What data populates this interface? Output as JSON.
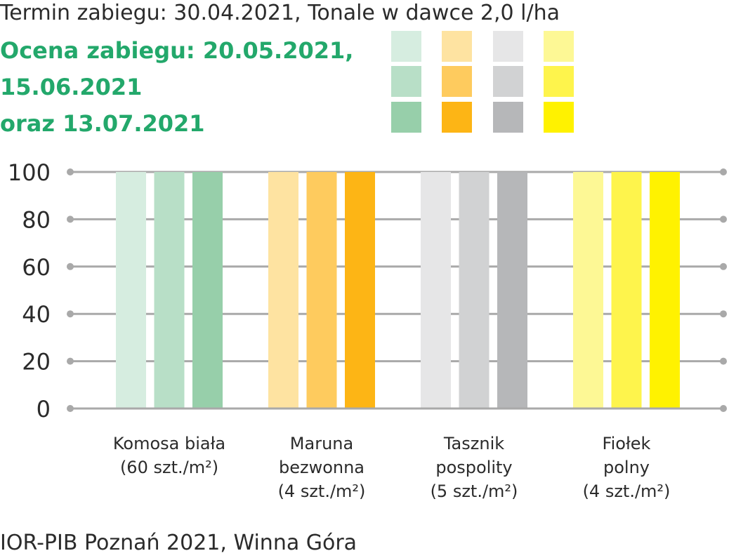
{
  "header": {
    "subtitle": "Termin zabiegu: 30.04.2021, Tonale w dawce 2,0 l/ha",
    "evaluation_lines": [
      "Ocena zabiegu: 20.05.2021,",
      "15.06.2021",
      "oraz 13.07.2021"
    ]
  },
  "footer": {
    "source": "IOR-PIB Poznań 2021, Winna Góra"
  },
  "chart_data": {
    "type": "bar",
    "title": "",
    "xlabel": "",
    "ylabel": "",
    "ylim": [
      0,
      100
    ],
    "yticks": [
      "0",
      "20",
      "40",
      "60",
      "80",
      "100"
    ],
    "grid": true,
    "legend": "top-right color swatch grid (rows = evaluation dates, columns = species)",
    "categories": [
      {
        "lines": [
          "Komosa biała",
          "(60 szt./m²)"
        ]
      },
      {
        "lines": [
          "Maruna",
          "bezwonna",
          "(4 szt./m²)"
        ]
      },
      {
        "lines": [
          "Tasznik",
          "pospolity",
          "(5 szt./m²)"
        ]
      },
      {
        "lines": [
          "Fiołek",
          "polny",
          "(4 szt./m²)"
        ]
      }
    ],
    "series": [
      {
        "values": [
          100,
          100,
          100,
          100
        ]
      },
      {
        "values": [
          100,
          100,
          100,
          100
        ]
      },
      {
        "values": [
          100,
          100,
          100,
          100
        ]
      }
    ],
    "colors": [
      [
        "#d6ede0",
        "#b8dfc7",
        "#97cfaa"
      ],
      [
        "#fee3a1",
        "#fecb5e",
        "#fdb515"
      ],
      [
        "#e6e6e7",
        "#d1d2d3",
        "#b6b7b9"
      ],
      [
        "#fdf895",
        "#fef44c",
        "#fff200"
      ]
    ],
    "grid_color": "#a9a9a9"
  }
}
